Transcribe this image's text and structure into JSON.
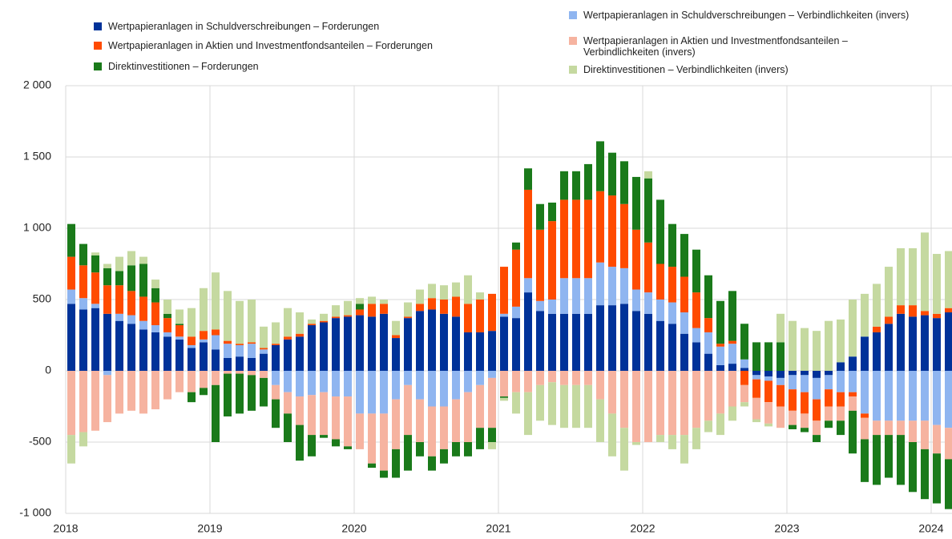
{
  "chart_data": {
    "type": "stacked-bar",
    "categories": [
      "2018",
      null,
      null,
      null,
      null,
      null,
      null,
      null,
      null,
      null,
      null,
      null,
      "2019",
      null,
      null,
      null,
      null,
      null,
      null,
      null,
      null,
      null,
      null,
      null,
      "2020",
      null,
      null,
      null,
      null,
      null,
      null,
      null,
      null,
      null,
      null,
      null,
      "2021",
      null,
      null,
      null,
      null,
      null,
      null,
      null,
      null,
      null,
      null,
      null,
      "2022",
      null,
      null,
      null,
      null,
      null,
      null,
      null,
      null,
      null,
      null,
      null,
      "2023",
      null,
      null,
      null,
      null,
      null,
      null,
      null,
      null,
      null,
      null,
      null,
      "2024",
      null
    ],
    "ylim": [
      -1000,
      2000
    ],
    "yticks": [
      {
        "value": -1000,
        "label": "-1 000"
      },
      -500,
      0,
      500,
      {
        "value": 1000,
        "label": "1 000"
      },
      {
        "value": 1500,
        "label": "1 500"
      },
      {
        "value": 2000,
        "label": "2 000"
      }
    ],
    "grid": true,
    "series": [
      {
        "name": "Wertpapieranlagen in Schuldverschreibungen – Forderungen",
        "color": "#003299",
        "values": [
          470,
          430,
          440,
          400,
          350,
          330,
          290,
          270,
          240,
          220,
          160,
          200,
          150,
          90,
          100,
          90,
          120,
          180,
          220,
          240,
          320,
          340,
          370,
          380,
          390,
          380,
          400,
          230,
          370,
          420,
          430,
          400,
          380,
          270,
          270,
          280,
          380,
          370,
          550,
          420,
          400,
          400,
          400,
          400,
          460,
          460,
          470,
          420,
          400,
          350,
          330,
          260,
          200,
          120,
          40,
          50,
          20,
          -30,
          -40,
          -50,
          -30,
          -30,
          -50,
          -30,
          60,
          100,
          240,
          270,
          330,
          400,
          380,
          390,
          370,
          410
        ]
      },
      {
        "name": "Wertpapieranlagen in Schuldverschreibungen – Verbindlichkeiten (invers)",
        "color": "#8fb5f0",
        "values": [
          100,
          80,
          30,
          -30,
          50,
          60,
          60,
          50,
          30,
          20,
          20,
          20,
          100,
          100,
          80,
          100,
          30,
          -100,
          -150,
          -180,
          -170,
          -150,
          -180,
          -180,
          -300,
          -300,
          -300,
          -200,
          -100,
          -200,
          -250,
          -250,
          -200,
          -150,
          -100,
          -50,
          20,
          80,
          100,
          70,
          100,
          250,
          250,
          250,
          300,
          270,
          250,
          150,
          150,
          150,
          150,
          150,
          100,
          150,
          130,
          140,
          60,
          -30,
          -30,
          -50,
          -100,
          -120,
          -150,
          -100,
          -150,
          -150,
          -300,
          -350,
          -350,
          -350,
          -350,
          -350,
          -380,
          -400
        ]
      },
      {
        "name": "Wertpapieranlagen in Aktien und Investmentfondsanteilen – Forderungen",
        "color": "#ff4b00",
        "values": [
          230,
          230,
          220,
          200,
          200,
          170,
          170,
          160,
          100,
          80,
          60,
          60,
          40,
          20,
          10,
          10,
          10,
          10,
          20,
          20,
          10,
          10,
          10,
          10,
          40,
          90,
          70,
          20,
          10,
          50,
          80,
          100,
          140,
          200,
          230,
          260,
          330,
          400,
          620,
          500,
          550,
          550,
          550,
          550,
          500,
          500,
          450,
          420,
          350,
          250,
          250,
          250,
          250,
          100,
          20,
          20,
          -100,
          -130,
          -150,
          -150,
          -150,
          -150,
          -150,
          -120,
          -100,
          -30,
          -30,
          40,
          50,
          60,
          80,
          30,
          30,
          30
        ]
      },
      {
        "name": "Wertpapieranlagen in Aktien und Investmentfondsanteilen – Verbindlichkeiten (invers)",
        "color": "#f6b3a0",
        "values": [
          -450,
          -430,
          -420,
          -330,
          -300,
          -280,
          -300,
          -270,
          -200,
          -150,
          -150,
          -120,
          -100,
          -20,
          -20,
          -30,
          -50,
          -100,
          -150,
          -200,
          -280,
          -300,
          -300,
          -350,
          -250,
          -350,
          -400,
          -350,
          -350,
          -300,
          -350,
          -300,
          -300,
          -350,
          -300,
          -350,
          -180,
          -150,
          -150,
          -100,
          -80,
          -100,
          -100,
          -100,
          -200,
          -300,
          -400,
          -500,
          -500,
          -450,
          -450,
          -450,
          -400,
          -350,
          -300,
          -250,
          -120,
          -150,
          -150,
          -150,
          -100,
          -100,
          -100,
          -100,
          -100,
          -100,
          -150,
          -100,
          -100,
          -100,
          -150,
          -200,
          -200,
          -220
        ]
      },
      {
        "name": "Direktinvestitionen – Forderungen",
        "color": "#1a7a1a",
        "values": [
          230,
          150,
          120,
          120,
          100,
          180,
          230,
          100,
          30,
          10,
          -70,
          -50,
          -400,
          -300,
          -280,
          -250,
          -200,
          -200,
          -200,
          -250,
          -150,
          -20,
          -50,
          -20,
          40,
          -30,
          -50,
          -200,
          -250,
          -100,
          -100,
          -100,
          -100,
          -100,
          -150,
          -100,
          -10,
          50,
          150,
          180,
          130,
          200,
          200,
          250,
          350,
          300,
          300,
          370,
          450,
          450,
          300,
          300,
          300,
          300,
          300,
          350,
          250,
          200,
          200,
          200,
          -30,
          -30,
          -50,
          -50,
          -100,
          -300,
          -300,
          -350,
          -300,
          -350,
          -350,
          -350,
          -350,
          -350
        ]
      },
      {
        "name": "Direktinvestitionen – Verbindlichkeiten (invers)",
        "color": "#c5d9a0",
        "values": [
          -200,
          -100,
          20,
          30,
          100,
          100,
          50,
          60,
          100,
          100,
          200,
          300,
          400,
          350,
          300,
          300,
          150,
          150,
          200,
          150,
          30,
          50,
          80,
          100,
          40,
          50,
          30,
          100,
          100,
          100,
          100,
          100,
          100,
          200,
          50,
          -50,
          -20,
          -150,
          -300,
          -250,
          -300,
          -300,
          -300,
          -300,
          -300,
          -300,
          -300,
          -20,
          50,
          -50,
          -100,
          -200,
          -150,
          -80,
          -150,
          -100,
          -30,
          -20,
          -20,
          200,
          350,
          300,
          280,
          350,
          300,
          400,
          300,
          300,
          350,
          400,
          400,
          550,
          420,
          400
        ]
      }
    ]
  }
}
